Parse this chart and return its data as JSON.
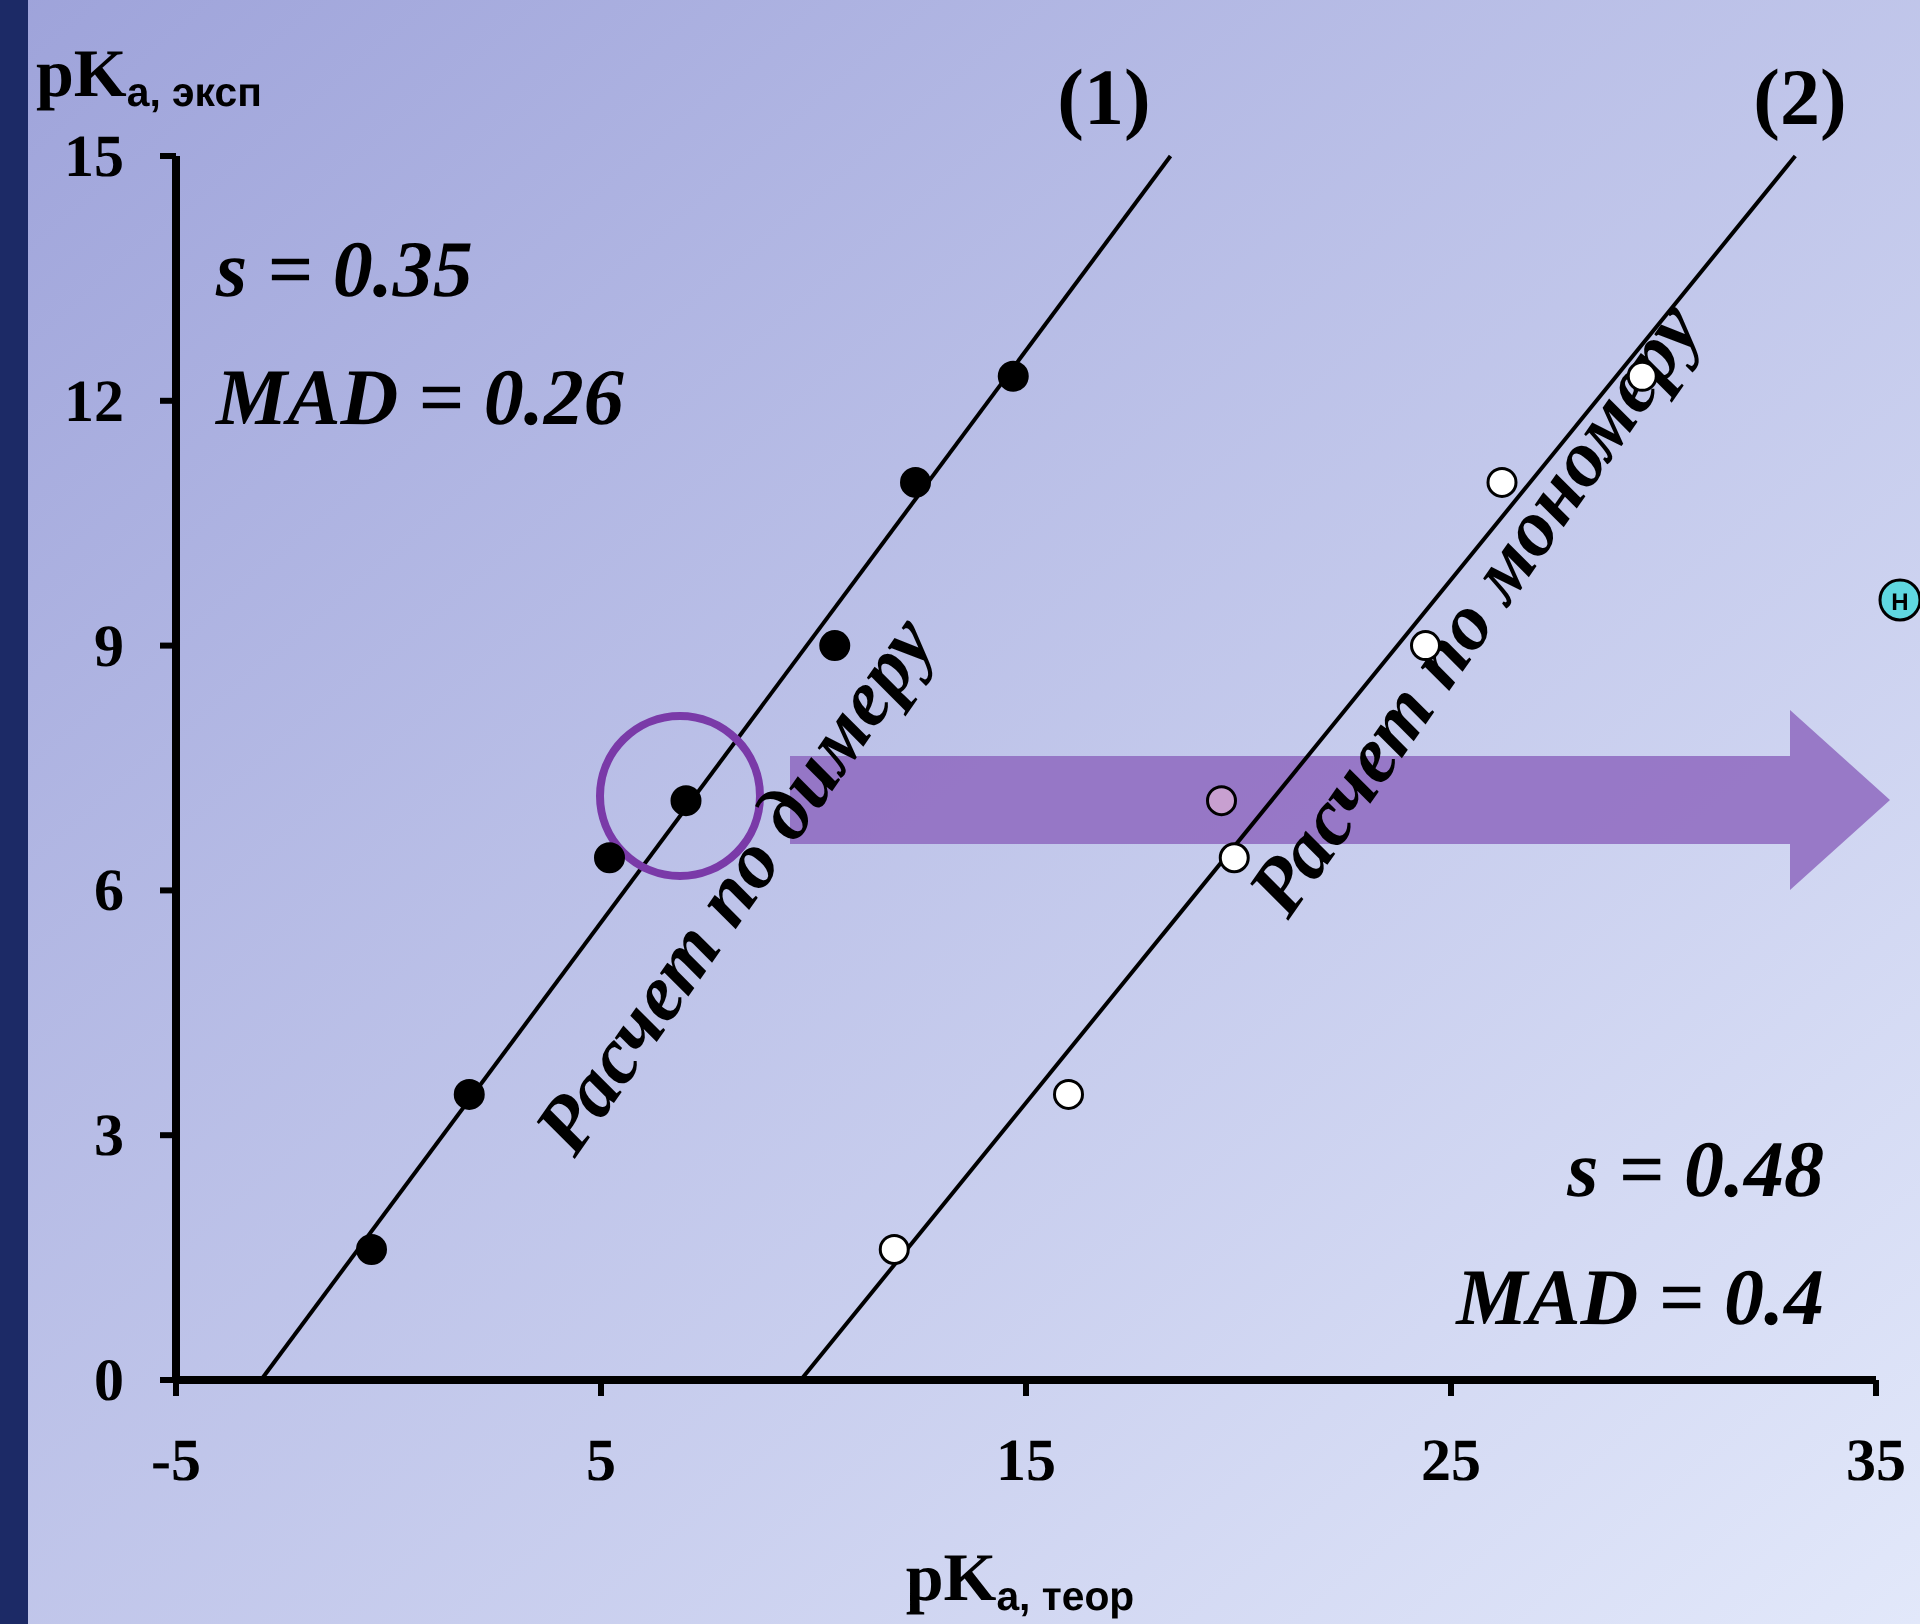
{
  "chart_data": {
    "type": "scatter",
    "xlabel": "pK$_{а, теор}$",
    "ylabel": "pK$_{а, эксп}$",
    "xlim": [
      -5,
      35
    ],
    "ylim": [
      0,
      15
    ],
    "xticks": [
      -5,
      5,
      15,
      25,
      35
    ],
    "yticks": [
      0,
      3,
      6,
      9,
      12,
      15
    ],
    "grid": false,
    "series": [
      {
        "marker": "circle",
        "color": "#000000",
        "x": [
          -0.4,
          1.9,
          5.2,
          7.0,
          10.5,
          12.4,
          14.7
        ],
        "values": [
          1.6,
          3.5,
          6.4,
          7.1,
          9.0,
          11.0,
          12.3
        ]
      },
      {
        "marker": "circle",
        "colors": [
          "#ffffff",
          "#ffffff",
          "#ffffff",
          "#c8a0d0",
          "#ffffff",
          "#ffffff",
          "#ffffff"
        ],
        "x": [
          11.9,
          16.0,
          19.9,
          19.6,
          24.4,
          26.2,
          29.5
        ],
        "values": [
          1.6,
          3.5,
          6.4,
          7.1,
          9.0,
          11.0,
          12.3
        ]
      },
      {
        "type": "line",
        "color": "#000000",
        "x": [
          -3.0,
          18.4
        ],
        "values": [
          0,
          15
        ]
      },
      {
        "type": "line",
        "color": "#000000",
        "x": [
          9.7,
          33.1
        ],
        "values": [
          0,
          15
        ]
      }
    ],
    "annotations": [
      "(1)",
      "(2)",
      "s = 0.35",
      "MAD = 0.26",
      "s = 0.48",
      "MAD = 0.4",
      "Расчет по димеру",
      "Расчет по мономеру",
      "H"
    ]
  }
}
